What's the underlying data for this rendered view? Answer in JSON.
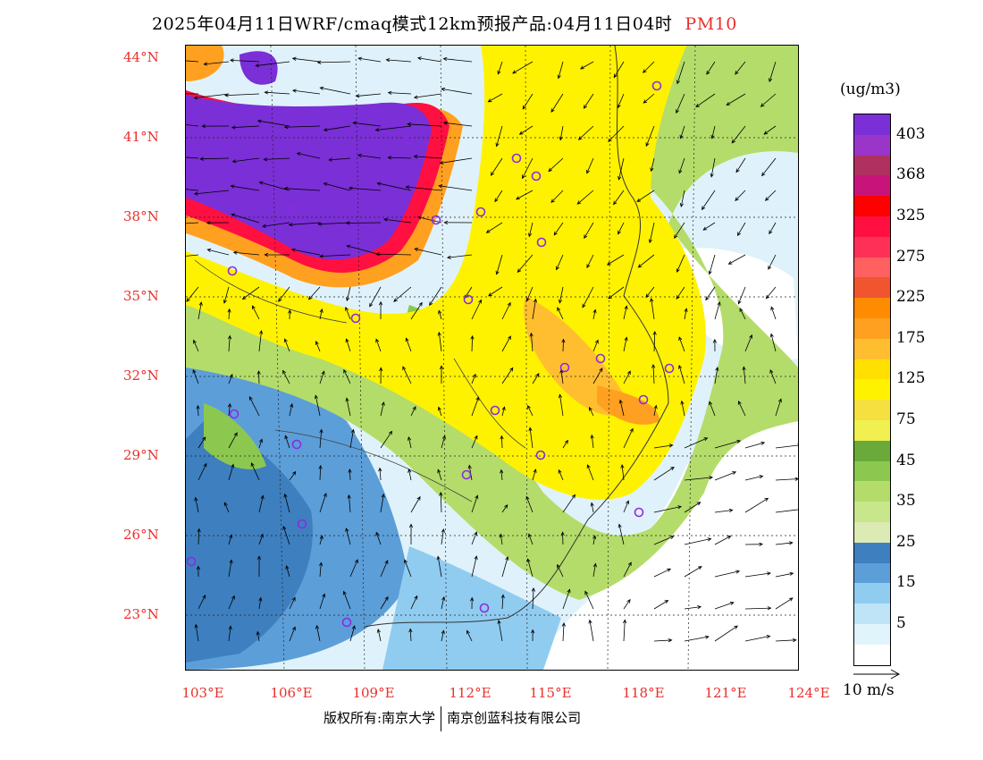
{
  "title": {
    "main": "2025年04月11日WRF/cmaq模式12km预报产品:04月11日04时",
    "species": "PM10"
  },
  "axes": {
    "lat_labels": [
      "44°N",
      "41°N",
      "38°N",
      "35°N",
      "32°N",
      "29°N",
      "26°N",
      "23°N"
    ],
    "lon_labels": [
      "103°E",
      "106°E",
      "109°E",
      "112°E",
      "115°E",
      "118°E",
      "121°E",
      "124°E"
    ]
  },
  "legend": {
    "units": "(ug/m3)",
    "labels": [
      "403",
      "368",
      "325",
      "275",
      "225",
      "175",
      "125",
      "75",
      "45",
      "35",
      "25",
      "15",
      "5"
    ],
    "colors": [
      "#7b2fd6",
      "#9a35c9",
      "#b03060",
      "#c8147a",
      "#ff0000",
      "#ff1040",
      "#ff3058",
      "#ff6060",
      "#f05530",
      "#ff8c00",
      "#ffa020",
      "#ffbe30",
      "#ffe000",
      "#fff200",
      "#f5e040",
      "#f0f050",
      "#6aaa3a",
      "#8cc850",
      "#b4dc6a",
      "#c8e68c",
      "#dceab4",
      "#3e7fbf",
      "#5c9ed8",
      "#90ccf0",
      "#bfe4f8",
      "#e0f4fc",
      "#ffffff"
    ]
  },
  "vector_ref": {
    "label": "10 m/s"
  },
  "copyright": {
    "owner1": "版权所有:南京大学",
    "owner2": "南京创蓝科技有限公司"
  },
  "colors": {
    "label_red": "#e8302c",
    "city_marker": "#8a2be2"
  }
}
